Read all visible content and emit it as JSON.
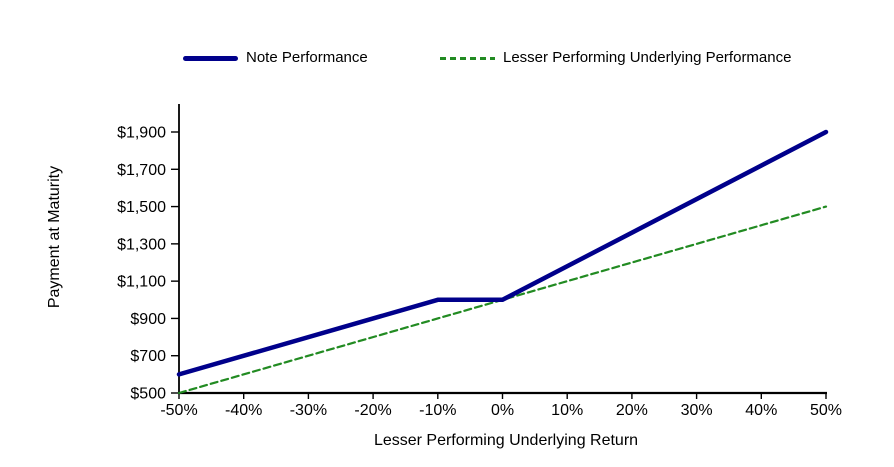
{
  "chart_data": {
    "type": "line",
    "title": "",
    "xlabel": "Lesser Performing Underlying Return",
    "ylabel": "Payment at Maturity",
    "xlim": [
      -50,
      50
    ],
    "ylim": [
      500,
      1900
    ],
    "grid": false,
    "legend_position": "top",
    "axis_color": "#000000",
    "x_ticks": [
      {
        "value": -50,
        "label": "-50%"
      },
      {
        "value": -40,
        "label": "-40%"
      },
      {
        "value": -30,
        "label": "-30%"
      },
      {
        "value": -20,
        "label": "-20%"
      },
      {
        "value": -10,
        "label": "-10%"
      },
      {
        "value": 0,
        "label": "0%"
      },
      {
        "value": 10,
        "label": "10%"
      },
      {
        "value": 20,
        "label": "20%"
      },
      {
        "value": 30,
        "label": "30%"
      },
      {
        "value": 40,
        "label": "40%"
      },
      {
        "value": 50,
        "label": "50%"
      }
    ],
    "y_ticks": [
      {
        "value": 500,
        "label": "$500"
      },
      {
        "value": 700,
        "label": "$700"
      },
      {
        "value": 900,
        "label": "$900"
      },
      {
        "value": 1100,
        "label": "$1,100"
      },
      {
        "value": 1300,
        "label": "$1,300"
      },
      {
        "value": 1500,
        "label": "$1,500"
      },
      {
        "value": 1700,
        "label": "$1,700"
      },
      {
        "value": 1900,
        "label": "$1,900"
      }
    ],
    "series": [
      {
        "name": "Note Performance",
        "color": "#00008B",
        "line_style": "solid",
        "points": [
          [
            -50,
            600
          ],
          [
            -10,
            1000
          ],
          [
            0,
            1000
          ],
          [
            50,
            1900
          ]
        ]
      },
      {
        "name": "Lesser Performing Underlying Performance",
        "color": "#228B22",
        "line_style": "dashed",
        "points": [
          [
            -50,
            500
          ],
          [
            0,
            1000
          ],
          [
            50,
            1500
          ]
        ]
      }
    ]
  }
}
